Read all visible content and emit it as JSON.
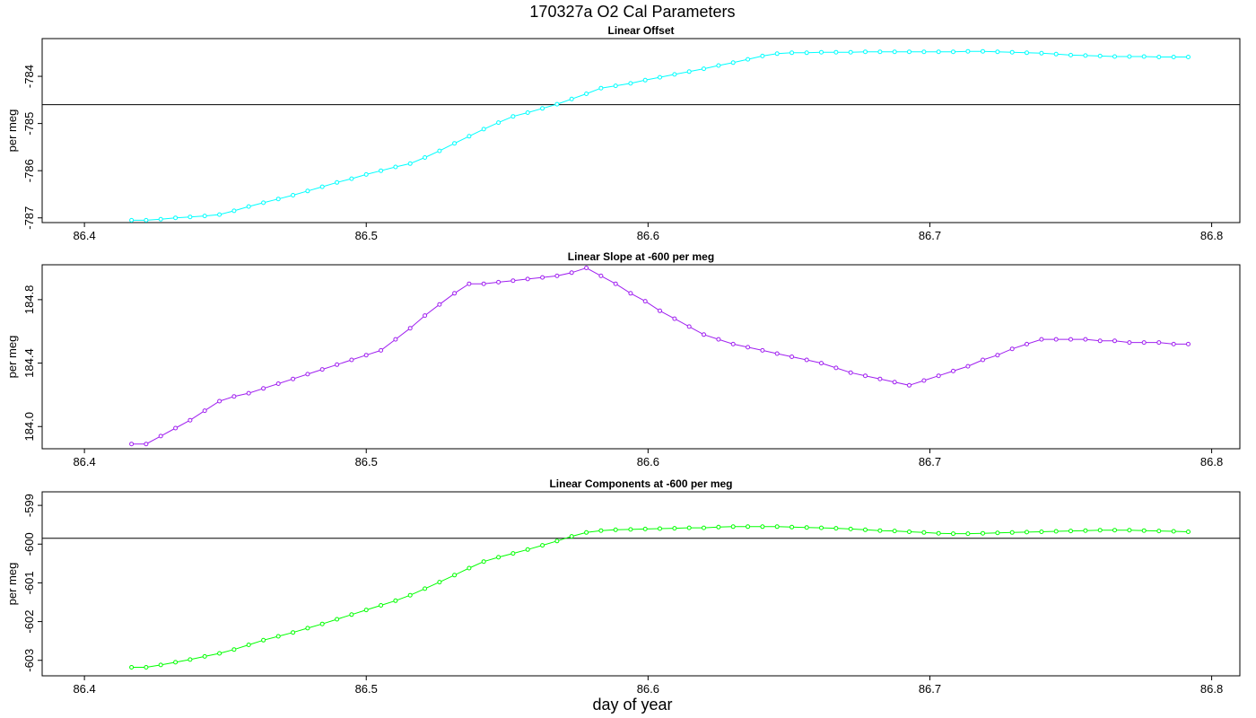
{
  "figure": {
    "title": "170327a   O2 Cal Parameters",
    "xlabel": "day of year"
  },
  "chart_data": [
    {
      "type": "line",
      "title": "Linear Offset",
      "ylabel": "per meg",
      "color": "#00ffff",
      "xlim": [
        86.385,
        86.81
      ],
      "ylim": [
        -787.1,
        -783.2
      ],
      "x_ticks": [
        "86.4",
        "86.5",
        "86.6",
        "86.7",
        "86.8"
      ],
      "y_ticks": [
        "-784",
        "-785",
        "-786",
        "-787"
      ],
      "reference_line": -784.6,
      "x": [
        86.4167,
        86.4219,
        86.4271,
        86.4323,
        86.4375,
        86.4427,
        86.4479,
        86.4531,
        86.4583,
        86.4635,
        86.4688,
        86.474,
        86.4792,
        86.4844,
        86.4896,
        86.4948,
        86.5,
        86.5052,
        86.5104,
        86.5156,
        86.5208,
        86.526,
        86.5313,
        86.5365,
        86.5417,
        86.5469,
        86.5521,
        86.5573,
        86.5625,
        86.5677,
        86.5729,
        86.5781,
        86.5833,
        86.5885,
        86.5938,
        86.599,
        86.6042,
        86.6094,
        86.6146,
        86.6198,
        86.625,
        86.6302,
        86.6354,
        86.6406,
        86.6458,
        86.651,
        86.6563,
        86.6615,
        86.6667,
        86.6719,
        86.6771,
        86.6823,
        86.6875,
        86.6927,
        86.6979,
        86.7031,
        86.7083,
        86.7135,
        86.7188,
        86.724,
        86.7292,
        86.7344,
        86.7396,
        86.7448,
        86.75,
        86.7552,
        86.7604,
        86.7656,
        86.7708,
        86.776,
        86.7813,
        86.7865,
        86.7917
      ],
      "y": [
        -787.05,
        -787.05,
        -787.03,
        -787.0,
        -786.98,
        -786.96,
        -786.93,
        -786.85,
        -786.76,
        -786.68,
        -786.6,
        -786.52,
        -786.43,
        -786.34,
        -786.25,
        -786.17,
        -786.08,
        -786.0,
        -785.92,
        -785.85,
        -785.72,
        -785.58,
        -785.42,
        -785.27,
        -785.12,
        -784.98,
        -784.85,
        -784.77,
        -784.68,
        -784.59,
        -784.48,
        -784.37,
        -784.25,
        -784.2,
        -784.15,
        -784.08,
        -784.02,
        -783.96,
        -783.9,
        -783.84,
        -783.77,
        -783.71,
        -783.64,
        -783.57,
        -783.52,
        -783.5,
        -783.5,
        -783.49,
        -783.49,
        -783.49,
        -783.48,
        -783.48,
        -783.48,
        -783.48,
        -783.48,
        -783.48,
        -783.48,
        -783.47,
        -783.47,
        -783.48,
        -783.49,
        -783.5,
        -783.51,
        -783.53,
        -783.55,
        -783.56,
        -783.57,
        -783.58,
        -783.58,
        -783.58,
        -783.59,
        -783.59,
        -783.59
      ]
    },
    {
      "type": "line",
      "title": "Linear Slope at -600 per meg",
      "ylabel": "per meg",
      "color": "#a020f0",
      "xlim": [
        86.385,
        86.81
      ],
      "ylim": [
        183.86,
        185.02
      ],
      "x_ticks": [
        "86.4",
        "86.5",
        "86.6",
        "86.7",
        "86.8"
      ],
      "y_ticks": [
        "184.0",
        "184.4",
        "184.8"
      ],
      "x": [
        86.4167,
        86.4219,
        86.4271,
        86.4323,
        86.4375,
        86.4427,
        86.4479,
        86.4531,
        86.4583,
        86.4635,
        86.4688,
        86.474,
        86.4792,
        86.4844,
        86.4896,
        86.4948,
        86.5,
        86.5052,
        86.5104,
        86.5156,
        86.5208,
        86.526,
        86.5313,
        86.5365,
        86.5417,
        86.5469,
        86.5521,
        86.5573,
        86.5625,
        86.5677,
        86.5729,
        86.5781,
        86.5833,
        86.5885,
        86.5938,
        86.599,
        86.6042,
        86.6094,
        86.6146,
        86.6198,
        86.625,
        86.6302,
        86.6354,
        86.6406,
        86.6458,
        86.651,
        86.6563,
        86.6615,
        86.6667,
        86.6719,
        86.6771,
        86.6823,
        86.6875,
        86.6927,
        86.6979,
        86.7031,
        86.7083,
        86.7135,
        86.7188,
        86.724,
        86.7292,
        86.7344,
        86.7396,
        86.7448,
        86.75,
        86.7552,
        86.7604,
        86.7656,
        86.7708,
        86.776,
        86.7813,
        86.7865,
        86.7917
      ],
      "y": [
        183.89,
        183.89,
        183.94,
        183.99,
        184.04,
        184.1,
        184.16,
        184.19,
        184.21,
        184.24,
        184.27,
        184.3,
        184.33,
        184.36,
        184.39,
        184.42,
        184.45,
        184.48,
        184.55,
        184.62,
        184.7,
        184.77,
        184.84,
        184.9,
        184.9,
        184.91,
        184.92,
        184.93,
        184.94,
        184.95,
        184.97,
        185.0,
        184.95,
        184.9,
        184.84,
        184.79,
        184.73,
        184.68,
        184.63,
        184.58,
        184.55,
        184.52,
        184.5,
        184.48,
        184.46,
        184.44,
        184.42,
        184.4,
        184.37,
        184.34,
        184.32,
        184.3,
        184.28,
        184.26,
        184.29,
        184.32,
        184.35,
        184.38,
        184.42,
        184.45,
        184.49,
        184.52,
        184.55,
        184.55,
        184.55,
        184.55,
        184.54,
        184.54,
        184.53,
        184.53,
        184.53,
        184.52,
        184.52
      ]
    },
    {
      "type": "line",
      "title": "Linear Components at -600 per meg",
      "ylabel": "per meg",
      "color": "#00ff00",
      "xlim": [
        86.385,
        86.81
      ],
      "ylim": [
        -603.4,
        -598.65
      ],
      "x_ticks": [
        "86.4",
        "86.5",
        "86.6",
        "86.7",
        "86.8"
      ],
      "y_ticks": [
        "-599",
        "-600",
        "-601",
        "-602",
        "-603"
      ],
      "reference_line": -599.85,
      "x": [
        86.4167,
        86.4219,
        86.4271,
        86.4323,
        86.4375,
        86.4427,
        86.4479,
        86.4531,
        86.4583,
        86.4635,
        86.4688,
        86.474,
        86.4792,
        86.4844,
        86.4896,
        86.4948,
        86.5,
        86.5052,
        86.5104,
        86.5156,
        86.5208,
        86.526,
        86.5313,
        86.5365,
        86.5417,
        86.5469,
        86.5521,
        86.5573,
        86.5625,
        86.5677,
        86.5729,
        86.5781,
        86.5833,
        86.5885,
        86.5938,
        86.599,
        86.6042,
        86.6094,
        86.6146,
        86.6198,
        86.625,
        86.6302,
        86.6354,
        86.6406,
        86.6458,
        86.651,
        86.6563,
        86.6615,
        86.6667,
        86.6719,
        86.6771,
        86.6823,
        86.6875,
        86.6927,
        86.6979,
        86.7031,
        86.7083,
        86.7135,
        86.7188,
        86.724,
        86.7292,
        86.7344,
        86.7396,
        86.7448,
        86.75,
        86.7552,
        86.7604,
        86.7656,
        86.7708,
        86.776,
        86.7813,
        86.7865,
        86.7917
      ],
      "y": [
        -603.18,
        -603.18,
        -603.12,
        -603.05,
        -602.98,
        -602.9,
        -602.82,
        -602.72,
        -602.6,
        -602.48,
        -602.38,
        -602.28,
        -602.17,
        -602.06,
        -601.94,
        -601.82,
        -601.7,
        -601.58,
        -601.46,
        -601.32,
        -601.15,
        -600.98,
        -600.8,
        -600.62,
        -600.45,
        -600.34,
        -600.24,
        -600.14,
        -600.03,
        -599.92,
        -599.8,
        -599.7,
        -599.65,
        -599.63,
        -599.62,
        -599.61,
        -599.6,
        -599.59,
        -599.58,
        -599.58,
        -599.56,
        -599.55,
        -599.55,
        -599.55,
        -599.55,
        -599.56,
        -599.57,
        -599.58,
        -599.59,
        -599.61,
        -599.63,
        -599.65,
        -599.66,
        -599.68,
        -599.7,
        -599.72,
        -599.73,
        -599.73,
        -599.72,
        -599.71,
        -599.7,
        -599.69,
        -599.68,
        -599.67,
        -599.66,
        -599.65,
        -599.64,
        -599.64,
        -599.64,
        -599.65,
        -599.66,
        -599.67,
        -599.68
      ]
    }
  ]
}
